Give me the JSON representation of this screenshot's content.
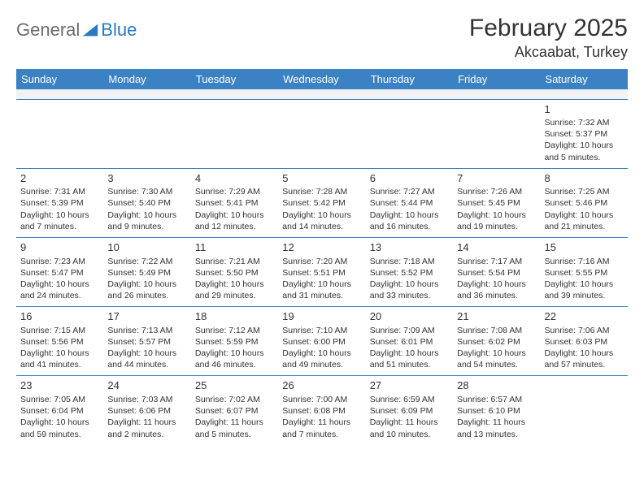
{
  "header": {
    "logo_general": "General",
    "logo_blue": "Blue",
    "month_title": "February 2025",
    "location": "Akcaabat, Turkey"
  },
  "colors": {
    "header_bg": "#3b82c4",
    "header_text": "#ffffff",
    "cell_border": "#3b82c4",
    "blank_bg": "#f2f2f2",
    "text": "#333333",
    "logo_gray": "#6c6c6c",
    "logo_blue": "#2a7abf"
  },
  "day_names": [
    "Sunday",
    "Monday",
    "Tuesday",
    "Wednesday",
    "Thursday",
    "Friday",
    "Saturday"
  ],
  "weeks": [
    [
      {
        "n": "",
        "sr": "",
        "ss": "",
        "dl": ""
      },
      {
        "n": "",
        "sr": "",
        "ss": "",
        "dl": ""
      },
      {
        "n": "",
        "sr": "",
        "ss": "",
        "dl": ""
      },
      {
        "n": "",
        "sr": "",
        "ss": "",
        "dl": ""
      },
      {
        "n": "",
        "sr": "",
        "ss": "",
        "dl": ""
      },
      {
        "n": "",
        "sr": "",
        "ss": "",
        "dl": ""
      },
      {
        "n": "1",
        "sr": "Sunrise: 7:32 AM",
        "ss": "Sunset: 5:37 PM",
        "dl": "Daylight: 10 hours and 5 minutes."
      }
    ],
    [
      {
        "n": "2",
        "sr": "Sunrise: 7:31 AM",
        "ss": "Sunset: 5:39 PM",
        "dl": "Daylight: 10 hours and 7 minutes."
      },
      {
        "n": "3",
        "sr": "Sunrise: 7:30 AM",
        "ss": "Sunset: 5:40 PM",
        "dl": "Daylight: 10 hours and 9 minutes."
      },
      {
        "n": "4",
        "sr": "Sunrise: 7:29 AM",
        "ss": "Sunset: 5:41 PM",
        "dl": "Daylight: 10 hours and 12 minutes."
      },
      {
        "n": "5",
        "sr": "Sunrise: 7:28 AM",
        "ss": "Sunset: 5:42 PM",
        "dl": "Daylight: 10 hours and 14 minutes."
      },
      {
        "n": "6",
        "sr": "Sunrise: 7:27 AM",
        "ss": "Sunset: 5:44 PM",
        "dl": "Daylight: 10 hours and 16 minutes."
      },
      {
        "n": "7",
        "sr": "Sunrise: 7:26 AM",
        "ss": "Sunset: 5:45 PM",
        "dl": "Daylight: 10 hours and 19 minutes."
      },
      {
        "n": "8",
        "sr": "Sunrise: 7:25 AM",
        "ss": "Sunset: 5:46 PM",
        "dl": "Daylight: 10 hours and 21 minutes."
      }
    ],
    [
      {
        "n": "9",
        "sr": "Sunrise: 7:23 AM",
        "ss": "Sunset: 5:47 PM",
        "dl": "Daylight: 10 hours and 24 minutes."
      },
      {
        "n": "10",
        "sr": "Sunrise: 7:22 AM",
        "ss": "Sunset: 5:49 PM",
        "dl": "Daylight: 10 hours and 26 minutes."
      },
      {
        "n": "11",
        "sr": "Sunrise: 7:21 AM",
        "ss": "Sunset: 5:50 PM",
        "dl": "Daylight: 10 hours and 29 minutes."
      },
      {
        "n": "12",
        "sr": "Sunrise: 7:20 AM",
        "ss": "Sunset: 5:51 PM",
        "dl": "Daylight: 10 hours and 31 minutes."
      },
      {
        "n": "13",
        "sr": "Sunrise: 7:18 AM",
        "ss": "Sunset: 5:52 PM",
        "dl": "Daylight: 10 hours and 33 minutes."
      },
      {
        "n": "14",
        "sr": "Sunrise: 7:17 AM",
        "ss": "Sunset: 5:54 PM",
        "dl": "Daylight: 10 hours and 36 minutes."
      },
      {
        "n": "15",
        "sr": "Sunrise: 7:16 AM",
        "ss": "Sunset: 5:55 PM",
        "dl": "Daylight: 10 hours and 39 minutes."
      }
    ],
    [
      {
        "n": "16",
        "sr": "Sunrise: 7:15 AM",
        "ss": "Sunset: 5:56 PM",
        "dl": "Daylight: 10 hours and 41 minutes."
      },
      {
        "n": "17",
        "sr": "Sunrise: 7:13 AM",
        "ss": "Sunset: 5:57 PM",
        "dl": "Daylight: 10 hours and 44 minutes."
      },
      {
        "n": "18",
        "sr": "Sunrise: 7:12 AM",
        "ss": "Sunset: 5:59 PM",
        "dl": "Daylight: 10 hours and 46 minutes."
      },
      {
        "n": "19",
        "sr": "Sunrise: 7:10 AM",
        "ss": "Sunset: 6:00 PM",
        "dl": "Daylight: 10 hours and 49 minutes."
      },
      {
        "n": "20",
        "sr": "Sunrise: 7:09 AM",
        "ss": "Sunset: 6:01 PM",
        "dl": "Daylight: 10 hours and 51 minutes."
      },
      {
        "n": "21",
        "sr": "Sunrise: 7:08 AM",
        "ss": "Sunset: 6:02 PM",
        "dl": "Daylight: 10 hours and 54 minutes."
      },
      {
        "n": "22",
        "sr": "Sunrise: 7:06 AM",
        "ss": "Sunset: 6:03 PM",
        "dl": "Daylight: 10 hours and 57 minutes."
      }
    ],
    [
      {
        "n": "23",
        "sr": "Sunrise: 7:05 AM",
        "ss": "Sunset: 6:04 PM",
        "dl": "Daylight: 10 hours and 59 minutes."
      },
      {
        "n": "24",
        "sr": "Sunrise: 7:03 AM",
        "ss": "Sunset: 6:06 PM",
        "dl": "Daylight: 11 hours and 2 minutes."
      },
      {
        "n": "25",
        "sr": "Sunrise: 7:02 AM",
        "ss": "Sunset: 6:07 PM",
        "dl": "Daylight: 11 hours and 5 minutes."
      },
      {
        "n": "26",
        "sr": "Sunrise: 7:00 AM",
        "ss": "Sunset: 6:08 PM",
        "dl": "Daylight: 11 hours and 7 minutes."
      },
      {
        "n": "27",
        "sr": "Sunrise: 6:59 AM",
        "ss": "Sunset: 6:09 PM",
        "dl": "Daylight: 11 hours and 10 minutes."
      },
      {
        "n": "28",
        "sr": "Sunrise: 6:57 AM",
        "ss": "Sunset: 6:10 PM",
        "dl": "Daylight: 11 hours and 13 minutes."
      },
      {
        "n": "",
        "sr": "",
        "ss": "",
        "dl": ""
      }
    ]
  ]
}
